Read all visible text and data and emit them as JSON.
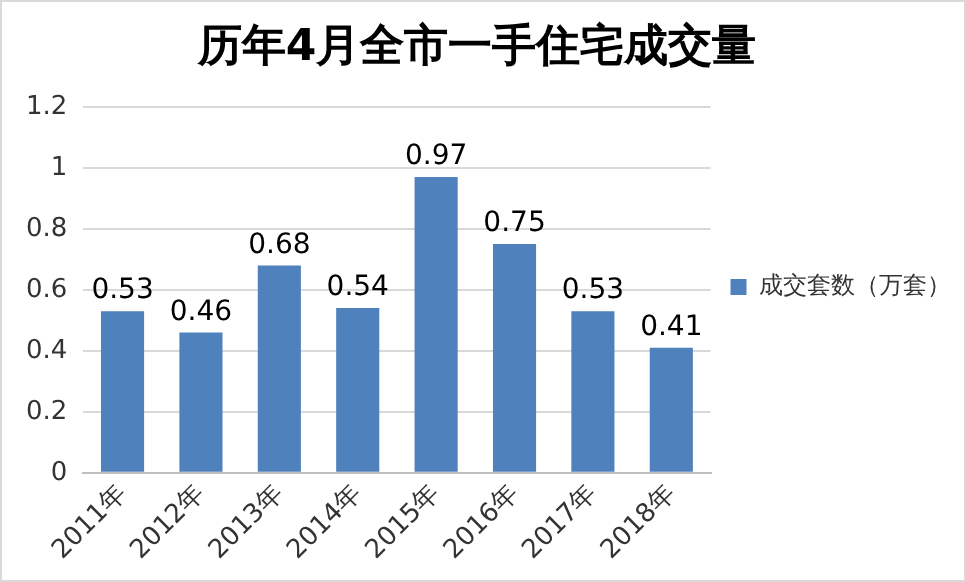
{
  "chart_data": {
    "type": "bar",
    "title": "历年4月全市一手住宅成交量",
    "categories": [
      "2011年",
      "2012年",
      "2013年",
      "2014年",
      "2015年",
      "2016年",
      "2017年",
      "2018年"
    ],
    "series": [
      {
        "name": "成交套数（万套）",
        "color": "#4f81bd",
        "values": [
          0.53,
          0.46,
          0.68,
          0.54,
          0.97,
          0.75,
          0.53,
          0.41
        ]
      }
    ],
    "ylim": [
      0,
      1.2
    ],
    "yticks": [
      0,
      0.2,
      0.4,
      0.6,
      0.8,
      1,
      1.2
    ],
    "grid": "y",
    "legend": "right",
    "data_labels": true
  }
}
